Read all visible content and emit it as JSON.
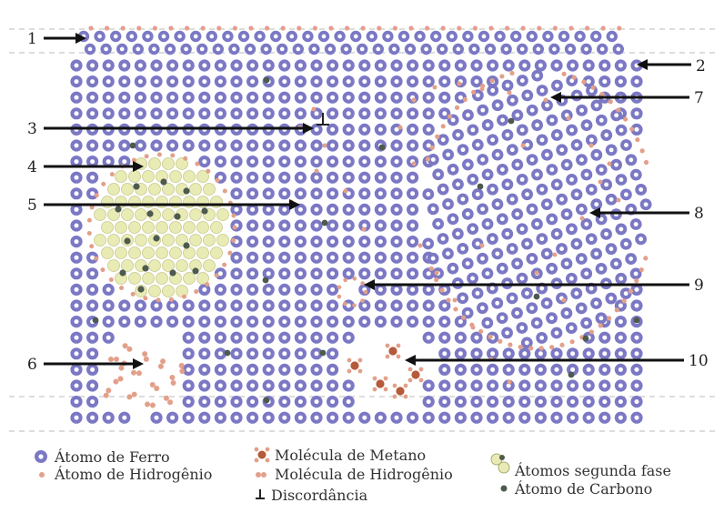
{
  "diagram": {
    "callouts": [
      "1",
      "2",
      "3",
      "4",
      "5",
      "6",
      "7",
      "8",
      "9",
      "10"
    ],
    "legend": {
      "iron_atom": "Átomo de Ferro",
      "hydrogen_atom": "Átomo de Hidrogênio",
      "methane_molecule": "Molécula de Metano",
      "hydrogen_molecule": "Molécula de Hidrogênio",
      "dislocation": "Discordância",
      "second_phase_atoms": "Átomos segunda fase",
      "carbon_atom": "Átomo de Carbono"
    },
    "colors": {
      "iron": "#7b78c4",
      "iron_core": "#ffffff",
      "hydrogen": "#e2a08a",
      "carbon": "#4d5a4d",
      "second_phase": "#e9ebb4",
      "methane": "#b55a3a",
      "line": "#111111"
    }
  }
}
